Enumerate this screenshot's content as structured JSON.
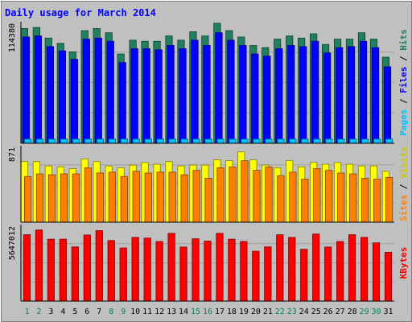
{
  "chart_data": {
    "type": "bar",
    "title": "Daily usage for March 2014",
    "categories": [
      "1",
      "2",
      "3",
      "4",
      "5",
      "6",
      "7",
      "8",
      "9",
      "10",
      "11",
      "12",
      "13",
      "14",
      "15",
      "16",
      "17",
      "18",
      "19",
      "20",
      "21",
      "22",
      "23",
      "24",
      "25",
      "26",
      "27",
      "28",
      "29",
      "30",
      "31"
    ],
    "weekend_days": [
      "1",
      "2",
      "8",
      "9",
      "15",
      "16",
      "22",
      "23",
      "29",
      "30"
    ],
    "panels": [
      {
        "id": "traffic",
        "max_label": "114380",
        "ylim": [
          0,
          114380
        ],
        "grid": true,
        "series": [
          {
            "name": "Hits",
            "color": "#208060",
            "values": [
              108000,
              109000,
              99000,
              94000,
              86000,
              106000,
              108000,
              104000,
              84000,
              97000,
              96000,
              96000,
              101000,
              97000,
              105000,
              101000,
              113000,
              106000,
              100000,
              92000,
              90000,
              98000,
              101000,
              99000,
              103000,
              93000,
              98000,
              98000,
              104000,
              98000,
              81000
            ]
          },
          {
            "name": "Files",
            "color": "#0000ff",
            "values": [
              100000,
              101000,
              91000,
              87000,
              79000,
              98000,
              99000,
              96000,
              76000,
              89000,
              89000,
              88000,
              92000,
              89000,
              97000,
              92000,
              104000,
              97000,
              92000,
              84000,
              82000,
              89000,
              92000,
              91000,
              96000,
              85000,
              90000,
              91000,
              96000,
              90000,
              72000
            ]
          },
          {
            "name": "Pages",
            "color": "#00c0ff",
            "values": [
              4000,
              4000,
              4000,
              4000,
              4000,
              4000,
              4000,
              4000,
              4000,
              4000,
              4000,
              4000,
              4000,
              4000,
              4000,
              4000,
              4000,
              4000,
              4000,
              4000,
              4000,
              4000,
              4000,
              4000,
              4000,
              4000,
              4000,
              4000,
              4000,
              4000,
              4000
            ]
          }
        ]
      },
      {
        "id": "visits",
        "max_label": "871",
        "ylim": [
          0,
          871
        ],
        "grid": true,
        "series": [
          {
            "name": "Visits",
            "color": "#ffff00",
            "values": [
              690,
              690,
              640,
              630,
              610,
              720,
              690,
              640,
              620,
              650,
              680,
              660,
              690,
              640,
              650,
              650,
              710,
              700,
              800,
              710,
              650,
              620,
              700,
              630,
              680,
              660,
              680,
              660,
              640,
              640,
              580
            ]
          },
          {
            "name": "Sites",
            "color": "#ff8000",
            "values": [
              520,
              550,
              540,
              550,
              550,
              620,
              560,
              570,
              520,
              580,
              560,
              570,
              570,
              540,
              590,
              500,
              620,
              630,
              700,
              590,
              630,
              530,
              570,
              490,
              610,
              590,
              560,
              550,
              500,
              490,
              510
            ]
          }
        ]
      },
      {
        "id": "kbytes",
        "max_label": "5647012",
        "ylim": [
          0,
          5647012
        ],
        "grid": true,
        "series": [
          {
            "name": "KBytes",
            "color": "#ff0000",
            "values": [
              4900000,
              5250000,
              4570000,
              4570000,
              4000000,
              4880000,
              5200000,
              4470000,
              3920000,
              4700000,
              4650000,
              4400000,
              5000000,
              3990000,
              4600000,
              4430000,
              5000000,
              4570000,
              4400000,
              3680000,
              4000000,
              4900000,
              4700000,
              3820000,
              4950000,
              3990000,
              4400000,
              4900000,
              4700000,
              4300000,
              3600000
            ]
          }
        ]
      }
    ]
  },
  "colors": {
    "frame_bg": "#c0c0c0",
    "title": "#0000ff",
    "day_label": "#000000",
    "weekend_label": "#00805c",
    "separator": "#000000"
  }
}
